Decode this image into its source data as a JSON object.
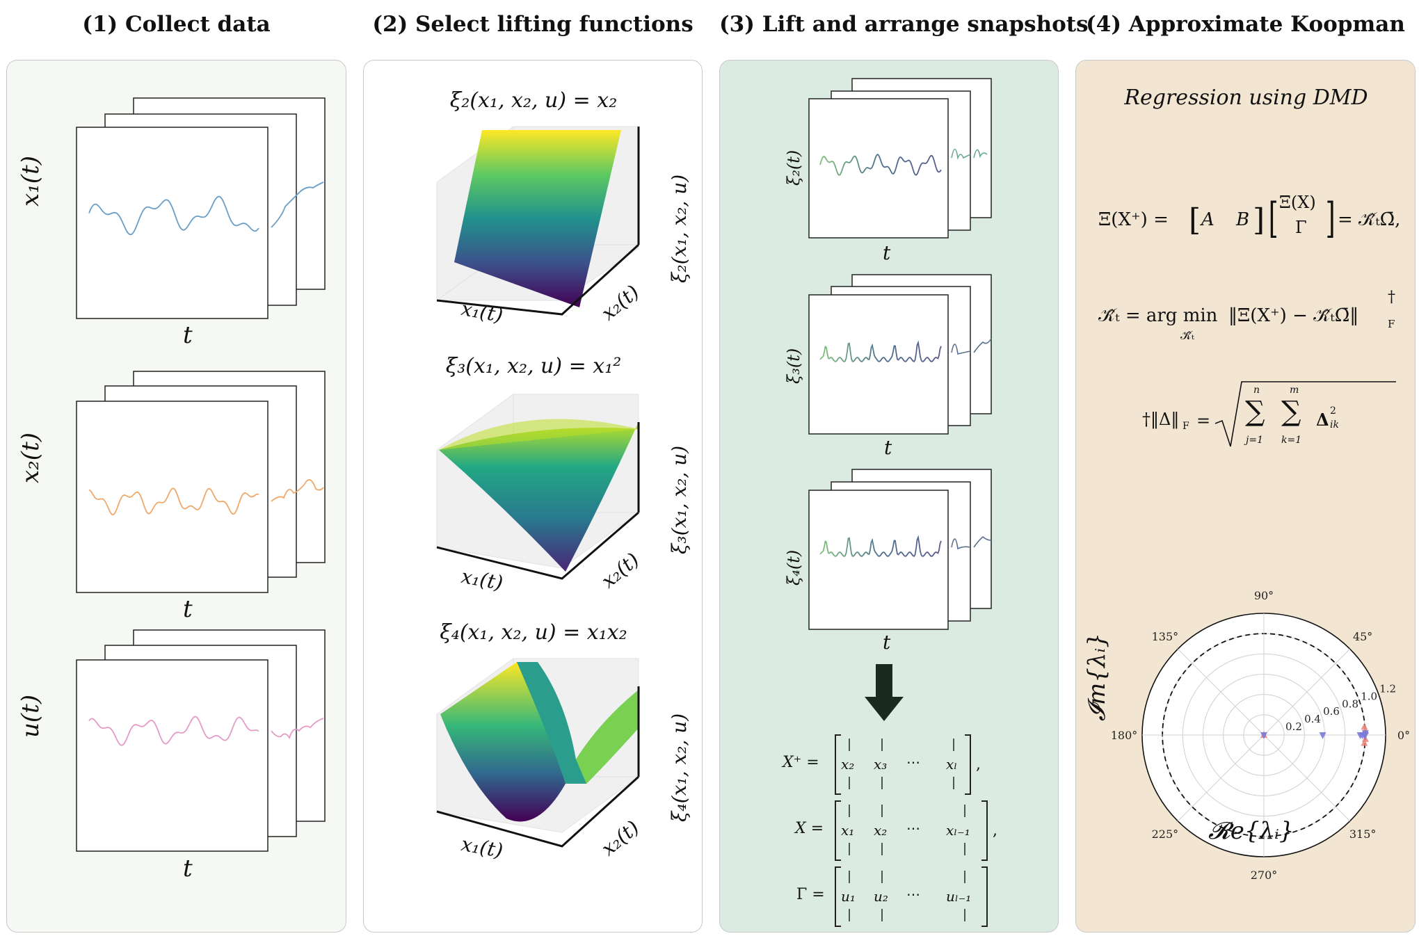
{
  "titles": {
    "p1": "(1) Collect data",
    "p2": "(2) Select lifting functions",
    "p3": "(3) Lift and arrange snapshots",
    "p4": "(4) Approximate Koopman"
  },
  "panel1": {
    "stacks": [
      {
        "ylabel": "x₁(t)",
        "xlabel": "t",
        "color": "#6a9ec6"
      },
      {
        "ylabel": "x₂(t)",
        "xlabel": "t",
        "color": "#f0a86a"
      },
      {
        "ylabel": "u(t)",
        "xlabel": "t",
        "color": "#e59ac8"
      }
    ]
  },
  "panel2": {
    "surfaces": [
      {
        "equation": "ξ₂(x₁, x₂, u) = x₂",
        "xlabel": "x₁(t)",
        "ylabel": "x₂(t)",
        "zlabel": "ξ₂(x₁, x₂, u)"
      },
      {
        "equation": "ξ₃(x₁, x₂, u) = x₁²",
        "xlabel": "x₁(t)",
        "ylabel": "x₂(t)",
        "zlabel": "ξ₃(x₁, x₂, u)"
      },
      {
        "equation": "ξ₄(x₁, x₂, u) = x₁x₂",
        "xlabel": "x₁(t)",
        "ylabel": "x₂(t)",
        "zlabel": "ξ₄(x₁, x₂, u)"
      }
    ]
  },
  "panel3": {
    "stacks": [
      {
        "ylabel": "ξ₂(t)",
        "xlabel": "t"
      },
      {
        "ylabel": "ξ₃(t)",
        "xlabel": "t"
      },
      {
        "ylabel": "ξ₄(t)",
        "xlabel": "t"
      }
    ],
    "matrices": [
      {
        "lhs": "X⁺ =",
        "cols": [
          "x₂",
          "x₃",
          "⋯",
          "xₗ"
        ],
        "tail": ","
      },
      {
        "lhs": "X =",
        "cols": [
          "x₁",
          "x₂",
          "⋯",
          "xₗ₋₁"
        ],
        "tail": ","
      },
      {
        "lhs": "Γ =",
        "cols": [
          "u₁",
          "u₂",
          "⋯",
          "uₗ₋₁"
        ],
        "tail": ""
      }
    ]
  },
  "panel4": {
    "subtitle": "Regression using DMD",
    "eq1_lhs": "Ξ(X⁺) =",
    "eq1_a": "A",
    "eq1_b": "B",
    "eq1_top": "Ξ(X)",
    "eq1_bottom": "Γ",
    "eq1_rhs": "= 𝒦̂ₜΩ̄,",
    "eq2_lhs": "𝒦̂ₜ = arg min",
    "eq2_sub": "𝒦̂ₜ",
    "eq2_rhs": "‖Ξ(X⁺) − 𝒦̂ₜΩ̄‖",
    "eq2_norm_sub": "F",
    "eq2_dagger": "†",
    "eq3_lhs": "†‖Δ‖",
    "eq3_sub": "F",
    "eq3_eq": "=",
    "eq3_sum1_top": "n",
    "eq3_sum1_bottom": "j=1",
    "eq3_sum2_top": "m",
    "eq3_sum2_bottom": "k=1",
    "eq3_term": "Δ",
    "eq3_term_sup": "2",
    "eq3_term_sub": "ik",
    "polar": {
      "angle_labels": [
        "0°",
        "45°",
        "90°",
        "135°",
        "180°",
        "225°",
        "270°",
        "315°"
      ],
      "radial_ticks": [
        "0.2",
        "0.4",
        "0.6",
        "0.8",
        "1.0",
        "1.2"
      ],
      "xlabel": "𝓡e{λᵢ}",
      "ylabel": "𝓘m{λᵢ}",
      "unit_circle_radius": 1.0,
      "rmax": 1.2,
      "eig_blue": [
        [
          0.0,
          0.0
        ],
        [
          0.58,
          0.0
        ],
        [
          0.95,
          0.0
        ],
        [
          0.97,
          0.0
        ],
        [
          0.99,
          0.0
        ],
        [
          1.0,
          0.0
        ],
        [
          1.0,
          0.02
        ]
      ],
      "eig_red": [
        [
          0.0,
          0.0
        ],
        [
          0.99,
          0.08
        ],
        [
          0.99,
          -0.08
        ],
        [
          1.0,
          0.04
        ],
        [
          1.0,
          -0.04
        ]
      ],
      "colors": {
        "blue": "#7a7ad8",
        "red": "#e8837a"
      }
    }
  }
}
